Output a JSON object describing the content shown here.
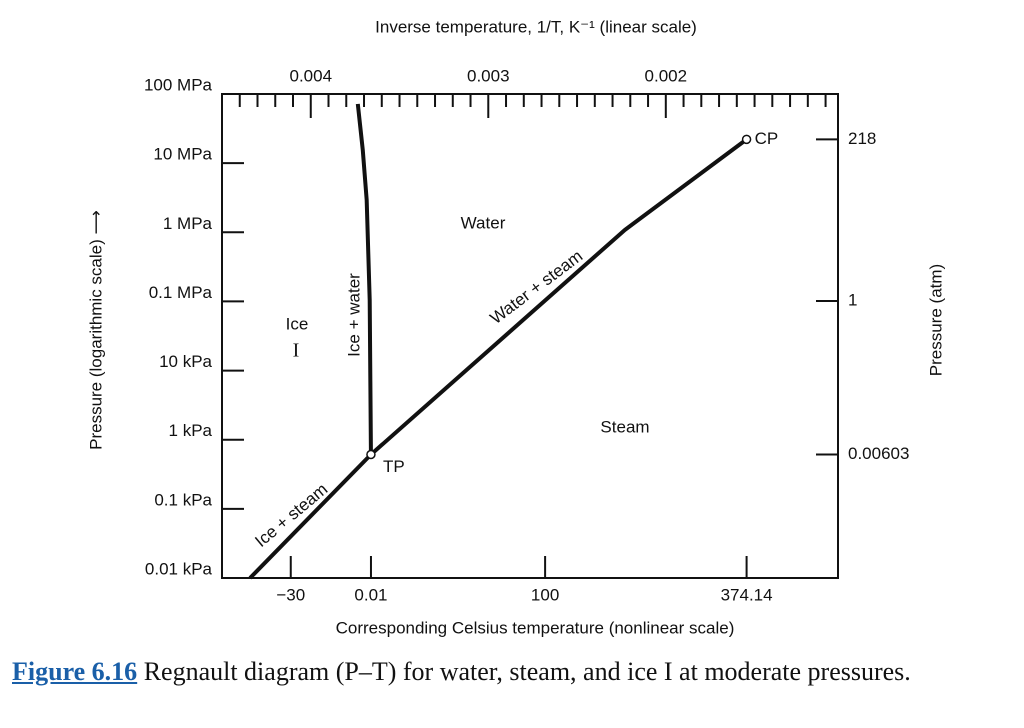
{
  "chart_data": {
    "type": "line",
    "top_axis_label": "Inverse temperature, 1/T, K⁻¹ (linear scale)",
    "bottom_axis_label": "Corresponding Celsius temperature (nonlinear scale)",
    "y_label": "Pressure (logarithmic scale) ⟶",
    "y2_label": "Pressure (atm)",
    "xlim": [
      0.0045,
      0.00103
    ],
    "xticks": [
      0.004,
      0.003,
      0.002
    ],
    "x2ticks": [
      {
        "value": -30,
        "label": "−30"
      },
      0.01,
      100,
      374.14
    ],
    "ylim": [
      10,
      100000000
    ],
    "ylog": true,
    "yticks": [
      {
        "value": 10,
        "label": "0.01 kPa"
      },
      {
        "value": 100,
        "label": "0.1 kPa"
      },
      {
        "value": 1000,
        "label": "1 kPa"
      },
      {
        "value": 10000,
        "label": "10 kPa"
      },
      {
        "value": 100000,
        "label": "0.1 MPa"
      },
      {
        "value": 1000000,
        "label": "1 MPa"
      },
      {
        "value": 10000000,
        "label": "10 MPa"
      },
      {
        "value": 100000000,
        "label": "100 MPa"
      }
    ],
    "y2lim": [
      9.87e-05,
      987
    ],
    "y2ticks": [
      218,
      1,
      0.00603
    ],
    "series": [
      {
        "name": "Ice + steam",
        "color": "#111111",
        "x": [
          0.004342,
          0.003661
        ],
        "y": [
          10,
          611
        ]
      },
      {
        "name": "Water + steam",
        "color": "#111111",
        "x": [
          0.003661,
          0.002231,
          0.001545
        ],
        "y": [
          611,
          1080000,
          22090000
        ]
      },
      {
        "name": "Ice + water",
        "color": "#111111",
        "x": [
          0.003661,
          0.003668,
          0.003685,
          0.003707,
          0.003735
        ],
        "y": [
          611,
          105000,
          2930000,
          15500000,
          71800000
        ]
      }
    ],
    "points": [
      {
        "label": "TP",
        "x": 0.003661,
        "y": 611
      },
      {
        "label": "CP",
        "x": 0.001545,
        "y": 22090000
      }
    ],
    "regions": [
      "Water",
      "Ice",
      "I",
      "Steam"
    ]
  },
  "caption": {
    "link": "Figure 6.16",
    "text": "Regnault diagram (P–T) for water, steam, and ice I at moderate pressures."
  }
}
